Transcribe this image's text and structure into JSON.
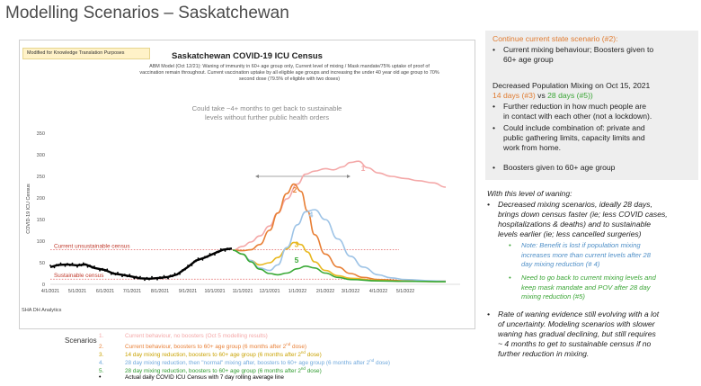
{
  "page": {
    "title": "Modelling Scenarios – Saskatchewan"
  },
  "chart_panel": {
    "kt_note": "Modified for Knowledge Translation Purposes",
    "source": "SHA DH Analytics"
  },
  "chart_data": {
    "type": "line",
    "title": "Saskatchewan COVID-19 ICU Census",
    "subtitle_lines": [
      "ABM Model (Oct 12/21): Waning of immunity in 60+ age group only, Current level of mixing / Mask mandate/75% uptake of proof of",
      "vaccination remain throughout.  Current vaccination uptake by all eligible age groups and increasing the under 40 year old age group to 70%",
      "second dose (79.5% of eligible with two doses)"
    ],
    "ylabel": "COVID-19 ICU Census",
    "xlabel": "",
    "ylim": [
      0,
      350
    ],
    "yticks": [
      0,
      50,
      100,
      150,
      200,
      250,
      300,
      350
    ],
    "xlim": [
      "2021-04-01",
      "2022-07-01"
    ],
    "x_ticks": [
      "2021-04-01",
      "2021-05-01",
      "2021-06-01",
      "2021-07-01",
      "2021-08-01",
      "2021-09-01",
      "2021-10-01",
      "2021-11-01",
      "2021-12-01",
      "2022-01-01",
      "2022-02-01",
      "2022-03-01",
      "2022-04-01",
      "2022-05-01"
    ],
    "x_tick_labels": [
      "4/1/2021",
      "5/1/2021",
      "6/1/2021",
      "7/1/2021",
      "8/1/2021",
      "9/1/2021",
      "10/1/2021",
      "11/1/2021",
      "12/1/2021",
      "1/1/2022",
      "2/1/2022",
      "3/1/2022",
      "4/1/2022",
      "5/1/2022"
    ],
    "grid": false,
    "reference_lines": [
      {
        "label": "Current unsustainable census",
        "y": 80,
        "color": "#e06060"
      },
      {
        "label": "Sustainable census",
        "y": 12,
        "color": "#e06060"
      }
    ],
    "annotation": {
      "text_lines": [
        "Could take ~4+ months to get back to sustainable",
        "levels without further public health orders"
      ],
      "arrow_from": "2021-11-15",
      "arrow_to": "2022-03-01",
      "arrow_y": 250
    },
    "series": [
      {
        "label": "1",
        "color": "#f4a8a8",
        "x": [
          "2021-10-21",
          "2021-11-01",
          "2021-11-10",
          "2021-11-20",
          "2021-12-01",
          "2021-12-10",
          "2021-12-20",
          "2022-01-01",
          "2022-01-10",
          "2022-01-20",
          "2022-02-01",
          "2022-02-10",
          "2022-02-20",
          "2022-03-01",
          "2022-03-10",
          "2022-03-20",
          "2022-04-01",
          "2022-04-15",
          "2022-05-01",
          "2022-05-15",
          "2022-06-01",
          "2022-06-15"
        ],
        "y": [
          79,
          88,
          98,
          112,
          135,
          165,
          198,
          232,
          255,
          262,
          268,
          265,
          272,
          282,
          285,
          270,
          258,
          250,
          245,
          240,
          235,
          225
        ]
      },
      {
        "label": "2",
        "color": "#e87f35",
        "x": [
          "2021-10-21",
          "2021-11-01",
          "2021-11-10",
          "2021-11-20",
          "2021-12-01",
          "2021-12-10",
          "2021-12-20",
          "2021-12-28",
          "2022-01-05",
          "2022-01-12",
          "2022-01-20",
          "2022-02-01",
          "2022-02-15",
          "2022-03-01",
          "2022-03-15",
          "2022-04-01",
          "2022-05-01",
          "2022-06-01",
          "2022-06-15"
        ],
        "y": [
          79,
          78,
          80,
          92,
          125,
          165,
          210,
          232,
          215,
          170,
          115,
          70,
          40,
          25,
          16,
          11,
          8,
          7,
          7
        ]
      },
      {
        "label": "3",
        "color": "#e8b820",
        "x": [
          "2021-10-21",
          "2021-11-01",
          "2021-11-10",
          "2021-11-20",
          "2021-12-01",
          "2021-12-10",
          "2021-12-20",
          "2021-12-28",
          "2022-01-05",
          "2022-01-12",
          "2022-01-20",
          "2022-02-01",
          "2022-02-15",
          "2022-03-01",
          "2022-04-01",
          "2022-05-01",
          "2022-06-15"
        ],
        "y": [
          79,
          70,
          55,
          45,
          50,
          62,
          82,
          97,
          92,
          75,
          52,
          32,
          20,
          14,
          9,
          7,
          6
        ]
      },
      {
        "label": "4",
        "color": "#9dc3e6",
        "x": [
          "2021-10-21",
          "2021-11-01",
          "2021-11-10",
          "2021-11-20",
          "2021-12-01",
          "2021-12-10",
          "2021-12-20",
          "2022-01-01",
          "2022-01-10",
          "2022-01-20",
          "2022-02-01",
          "2022-02-15",
          "2022-03-01",
          "2022-03-15",
          "2022-04-01",
          "2022-04-15",
          "2022-05-01",
          "2022-06-01",
          "2022-06-15"
        ],
        "y": [
          79,
          70,
          55,
          38,
          32,
          45,
          85,
          138,
          168,
          173,
          150,
          105,
          65,
          40,
          22,
          15,
          11,
          8,
          7
        ]
      },
      {
        "label": "5",
        "color": "#39a935",
        "x": [
          "2021-10-21",
          "2021-11-01",
          "2021-11-10",
          "2021-11-20",
          "2021-12-01",
          "2021-12-10",
          "2021-12-20",
          "2022-01-01",
          "2022-01-10",
          "2022-01-20",
          "2022-02-01",
          "2022-02-15",
          "2022-03-01",
          "2022-04-01",
          "2022-05-01",
          "2022-06-15"
        ],
        "y": [
          79,
          70,
          52,
          35,
          25,
          22,
          26,
          36,
          42,
          38,
          26,
          16,
          11,
          8,
          7,
          6
        ]
      },
      {
        "label": "",
        "color": "#000000",
        "x": [
          "2021-04-01",
          "2021-04-10",
          "2021-04-20",
          "2021-05-01",
          "2021-05-10",
          "2021-05-20",
          "2021-06-01",
          "2021-06-10",
          "2021-06-20",
          "2021-07-01",
          "2021-07-10",
          "2021-07-20",
          "2021-08-01",
          "2021-08-10",
          "2021-08-20",
          "2021-09-01",
          "2021-09-10",
          "2021-09-20",
          "2021-10-01",
          "2021-10-10",
          "2021-10-20"
        ],
        "y": [
          40,
          45,
          46,
          44,
          46,
          38,
          33,
          25,
          22,
          18,
          14,
          13,
          15,
          17,
          23,
          40,
          55,
          62,
          72,
          80,
          83
        ]
      }
    ]
  },
  "legend": {
    "title": "Scenarios",
    "items": [
      {
        "num": "1.",
        "text": "Current behaviour, no boosters (Oct 5 modelling results)",
        "color": "#f4a8a8"
      },
      {
        "num": "2.",
        "text": "Current behaviour, boosters to 60+ age group (6 months after 2",
        "sup": "nd",
        "tail": " dose)",
        "color": "#e87f35"
      },
      {
        "num": "3.",
        "text": "14 day mixing reduction, boosters to 60+ age group (6 months after 2",
        "sup": "nd",
        "tail": " dose)",
        "color": "#c9a200"
      },
      {
        "num": "4.",
        "text": "28 day mixing reduction, then \"normal\" mixing after, boosters to 60+ age group (6 months after 2",
        "sup": "nd",
        "tail": " dose)",
        "color": "#6fa8dc"
      },
      {
        "num": "5.",
        "text": "28 day mixing reduction, boosters to 60+ age group (6 months after 2",
        "sup": "nd",
        "tail": " dose)",
        "color": "#2e9b2e"
      },
      {
        "num": "•",
        "text": "Actual daily COVID ICU Census with 7 day rolling average line",
        "color": "#000000"
      }
    ]
  },
  "right_panel": {
    "box1": {
      "heading": "Continue current state scenario (#2):",
      "bullet": [
        "Current mixing behaviour; Boosters given to",
        "60+ age group"
      ]
    },
    "box2": {
      "heading": "Decreased Population Mixing on Oct 15, 2021",
      "sub_a": "14 days (#3)",
      "sub_vs": " vs ",
      "sub_b": "28 days (#5))",
      "bullets": [
        [
          "Further reduction in how much people are",
          "in contact with each other (not a lockdown)."
        ],
        [
          "Could include combination of: private and",
          "public gathering limits, capacity limits and",
          "work from home."
        ],
        [
          "Boosters given to 60+ age group"
        ]
      ]
    },
    "waning": {
      "heading": "With this level of waning:",
      "b1": [
        "Decreased mixing scenarios, ideally 28 days,",
        "brings down census faster (ie; less COVID cases,",
        "hospitalizations & deaths) and to sustainable",
        "levels earlier (ie; less cancelled surgeries)"
      ],
      "note1": [
        "Note: Benefit is lost if population mixing",
        "increases more than current levels after 28",
        "day mixing reduction (# 4)"
      ],
      "note2": [
        "Need to go back to current mixing levels and",
        "keep mask mandate and POV after 28 day",
        "mixing reduction (#5)"
      ],
      "b2": [
        "Rate of waning evidence still evolving with a lot",
        "of uncertainty.  Modeling scenarios with slower",
        "waning has gradual declining, but still requires",
        "~ 4 months to get to sustainable census if no",
        "further reduction in mixing."
      ]
    },
    "colors": {
      "orange": "#e07b30",
      "green": "#3aa535",
      "blue": "#4f8fc7"
    }
  }
}
